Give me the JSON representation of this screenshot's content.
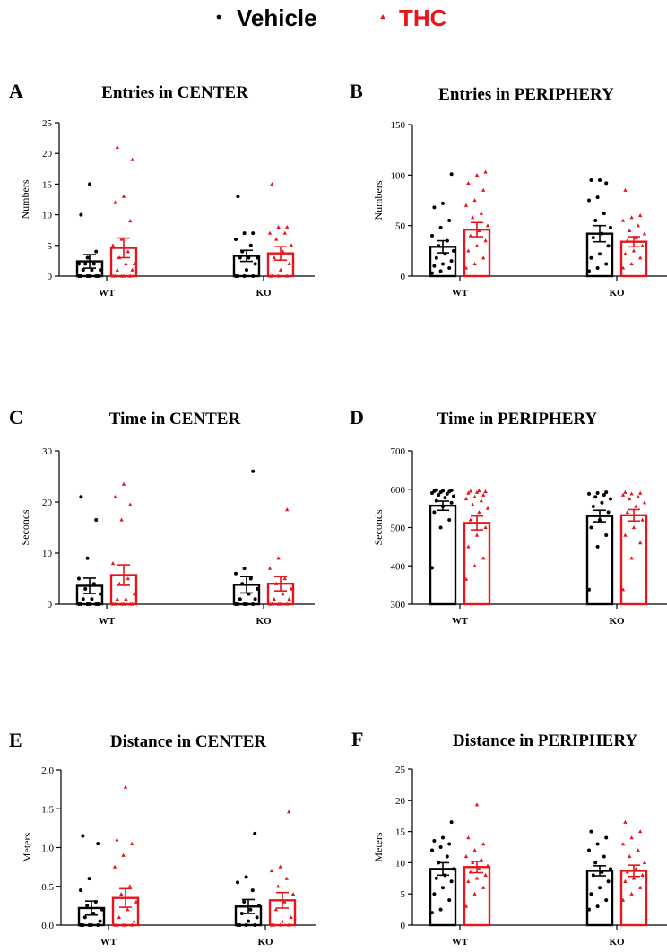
{
  "legend": {
    "items": [
      {
        "label": "Vehicle",
        "color": "#000000",
        "marker": "circle"
      },
      {
        "label": "THC",
        "color": "#e8141b",
        "marker": "triangle"
      }
    ]
  },
  "colors": {
    "vehicle": "#000000",
    "thc": "#e8141b"
  },
  "chart_data": [
    {
      "type": "bar",
      "letter": "A",
      "title": "Entries in CENTER",
      "ylabel": "Numbers",
      "categories": [
        "WT",
        "KO"
      ],
      "ylim": [
        0,
        25
      ],
      "yticks": [
        0,
        5,
        10,
        15,
        20,
        25
      ],
      "series": [
        {
          "name": "Vehicle",
          "values": [
            2.4,
            3.3
          ],
          "sem": [
            1.1,
            0.9
          ],
          "points": [
            [
              0,
              0,
              0,
              0,
              0,
              0,
              1,
              1,
              1,
              2,
              2,
              2,
              3,
              4,
              10,
              15
            ],
            [
              0,
              0,
              0,
              0,
              1,
              2,
              3,
              3,
              3,
              4,
              5,
              6,
              7,
              7,
              13
            ]
          ]
        },
        {
          "name": "THC",
          "values": [
            4.6,
            3.7
          ],
          "sem": [
            1.6,
            1.1
          ],
          "points": [
            [
              0,
              0,
              0,
              0,
              0,
              1,
              1,
              2,
              2,
              3,
              4,
              5,
              6,
              9,
              12,
              13,
              19,
              21
            ],
            [
              0,
              0,
              0,
              0,
              1,
              2,
              3,
              4,
              5,
              6,
              7,
              7,
              8,
              8,
              15
            ]
          ]
        }
      ]
    },
    {
      "type": "bar",
      "letter": "B",
      "title": "Entries in PERIPHERY",
      "ylabel": "Numbers",
      "categories": [
        "WT",
        "KO"
      ],
      "ylim": [
        0,
        150
      ],
      "yticks": [
        0,
        50,
        100,
        150
      ],
      "series": [
        {
          "name": "Vehicle",
          "values": [
            29,
            42
          ],
          "sem": [
            6,
            8
          ],
          "points": [
            [
              3,
              5,
              8,
              10,
              12,
              15,
              18,
              22,
              25,
              30,
              35,
              40,
              48,
              55,
              68,
              72,
              101
            ],
            [
              5,
              8,
              12,
              18,
              22,
              30,
              38,
              42,
              48,
              55,
              62,
              75,
              78,
              92,
              95,
              95
            ]
          ]
        },
        {
          "name": "THC",
          "values": [
            46,
            34
          ],
          "sem": [
            7,
            5
          ],
          "points": [
            [
              8,
              12,
              18,
              25,
              30,
              35,
              40,
              45,
              50,
              58,
              62,
              70,
              75,
              85,
              92,
              100,
              103
            ],
            [
              8,
              12,
              18,
              22,
              25,
              30,
              35,
              38,
              42,
              45,
              50,
              55,
              58,
              60,
              85
            ]
          ]
        }
      ]
    },
    {
      "type": "bar",
      "letter": "C",
      "title": "Time in CENTER",
      "ylabel": "Seconds",
      "categories": [
        "WT",
        "KO"
      ],
      "ylim": [
        0,
        30
      ],
      "yticks": [
        0,
        10,
        20,
        30
      ],
      "series": [
        {
          "name": "Vehicle",
          "values": [
            3.6,
            3.8
          ],
          "sem": [
            1.5,
            1.6
          ],
          "points": [
            [
              0,
              0,
              0,
              0,
              0,
              0,
              1,
              1,
              2,
              3,
              4,
              5,
              9,
              16.5,
              21
            ],
            [
              0,
              0,
              0,
              0,
              0,
              1,
              1,
              2,
              3,
              4,
              5,
              6,
              7,
              26
            ]
          ]
        },
        {
          "name": "THC",
          "values": [
            5.7,
            4.0
          ],
          "sem": [
            2.0,
            1.4
          ],
          "points": [
            [
              0,
              0,
              0,
              0,
              0,
              0,
              1,
              1,
              2,
              4,
              5,
              8,
              16.5,
              19.5,
              21,
              23.5
            ],
            [
              0,
              0,
              0,
              0,
              0,
              1,
              1,
              2,
              3,
              4,
              5,
              7,
              9,
              18.5
            ]
          ]
        }
      ]
    },
    {
      "type": "bar",
      "letter": "D",
      "title": "Time in PERIPHERY",
      "ylabel": "Seconds",
      "categories": [
        "WT",
        "KO"
      ],
      "ylim": [
        300,
        700
      ],
      "yticks": [
        300,
        400,
        500,
        600,
        700
      ],
      "series": [
        {
          "name": "Vehicle",
          "values": [
            557,
            530
          ],
          "sem": [
            12,
            15
          ],
          "points": [
            [
              395,
              500,
              520,
              540,
              555,
              565,
              570,
              578,
              582,
              585,
              588,
              590,
              592,
              594,
              595,
              596,
              597,
              598
            ],
            [
              338,
              450,
              480,
              500,
              520,
              540,
              555,
              565,
              575,
              580,
              585,
              588,
              590,
              592
            ]
          ]
        },
        {
          "name": "THC",
          "values": [
            512,
            532
          ],
          "sem": [
            18,
            15
          ],
          "points": [
            [
              365,
              400,
              420,
              450,
              480,
              500,
              520,
              540,
              550,
              560,
              570,
              575,
              580,
              585,
              590,
              592,
              594,
              595,
              596
            ],
            [
              338,
              420,
              460,
              480,
              500,
              520,
              540,
              555,
              565,
              575,
              580,
              585,
              588,
              590,
              592
            ]
          ]
        }
      ]
    },
    {
      "type": "bar",
      "letter": "E",
      "title": "Distance in CENTER",
      "ylabel": "Meters",
      "categories": [
        "WT",
        "KO"
      ],
      "ylim": [
        0,
        2.0
      ],
      "yticks": [
        "0.0",
        "0.5",
        "1.0",
        "1.5",
        "2.0"
      ],
      "series": [
        {
          "name": "Vehicle",
          "values": [
            0.22,
            0.24
          ],
          "sem": [
            0.09,
            0.09
          ],
          "points": [
            [
              0,
              0,
              0,
              0,
              0,
              0.05,
              0.1,
              0.15,
              0.2,
              0.25,
              0.3,
              0.45,
              0.6,
              1.05,
              1.15
            ],
            [
              0,
              0,
              0,
              0,
              0.05,
              0.1,
              0.15,
              0.2,
              0.25,
              0.3,
              0.45,
              0.55,
              0.62,
              1.18
            ]
          ]
        },
        {
          "name": "THC",
          "values": [
            0.35,
            0.32
          ],
          "sem": [
            0.12,
            0.1
          ],
          "points": [
            [
              0,
              0,
              0,
              0,
              0,
              0.05,
              0.1,
              0.2,
              0.3,
              0.4,
              0.5,
              0.75,
              0.9,
              1.05,
              1.1,
              1.78
            ],
            [
              0,
              0,
              0,
              0,
              0.05,
              0.1,
              0.2,
              0.3,
              0.4,
              0.5,
              0.6,
              0.7,
              0.75,
              1.46
            ]
          ]
        }
      ]
    },
    {
      "type": "bar",
      "letter": "F",
      "title": "Distance in PERIPHERY",
      "ylabel": "Meters",
      "categories": [
        "WT",
        "KO"
      ],
      "ylim": [
        0,
        25
      ],
      "yticks": [
        0,
        5,
        10,
        15,
        20,
        25
      ],
      "series": [
        {
          "name": "Vehicle",
          "values": [
            9.0,
            8.7
          ],
          "sem": [
            1.0,
            0.8
          ],
          "points": [
            [
              2,
              2.5,
              4,
              5,
              6,
              7,
              7.5,
              8,
              9,
              10,
              11,
              12,
              12.5,
              13,
              13.5,
              14,
              16.5
            ],
            [
              2.5,
              3,
              4,
              5,
              6,
              7,
              8,
              8.5,
              9,
              10,
              11,
              12,
              13,
              14,
              15
            ]
          ]
        },
        {
          "name": "THC",
          "values": [
            9.3,
            8.7
          ],
          "sem": [
            0.9,
            0.9
          ],
          "points": [
            [
              3,
              5,
              6,
              7,
              7.5,
              8,
              8.5,
              9,
              9.5,
              10,
              10.5,
              11,
              12,
              13,
              14,
              19.3
            ],
            [
              4,
              5,
              6,
              7,
              7.5,
              8,
              8.5,
              9,
              10,
              11,
              12,
              13,
              14,
              15,
              16.5
            ]
          ]
        }
      ]
    }
  ]
}
